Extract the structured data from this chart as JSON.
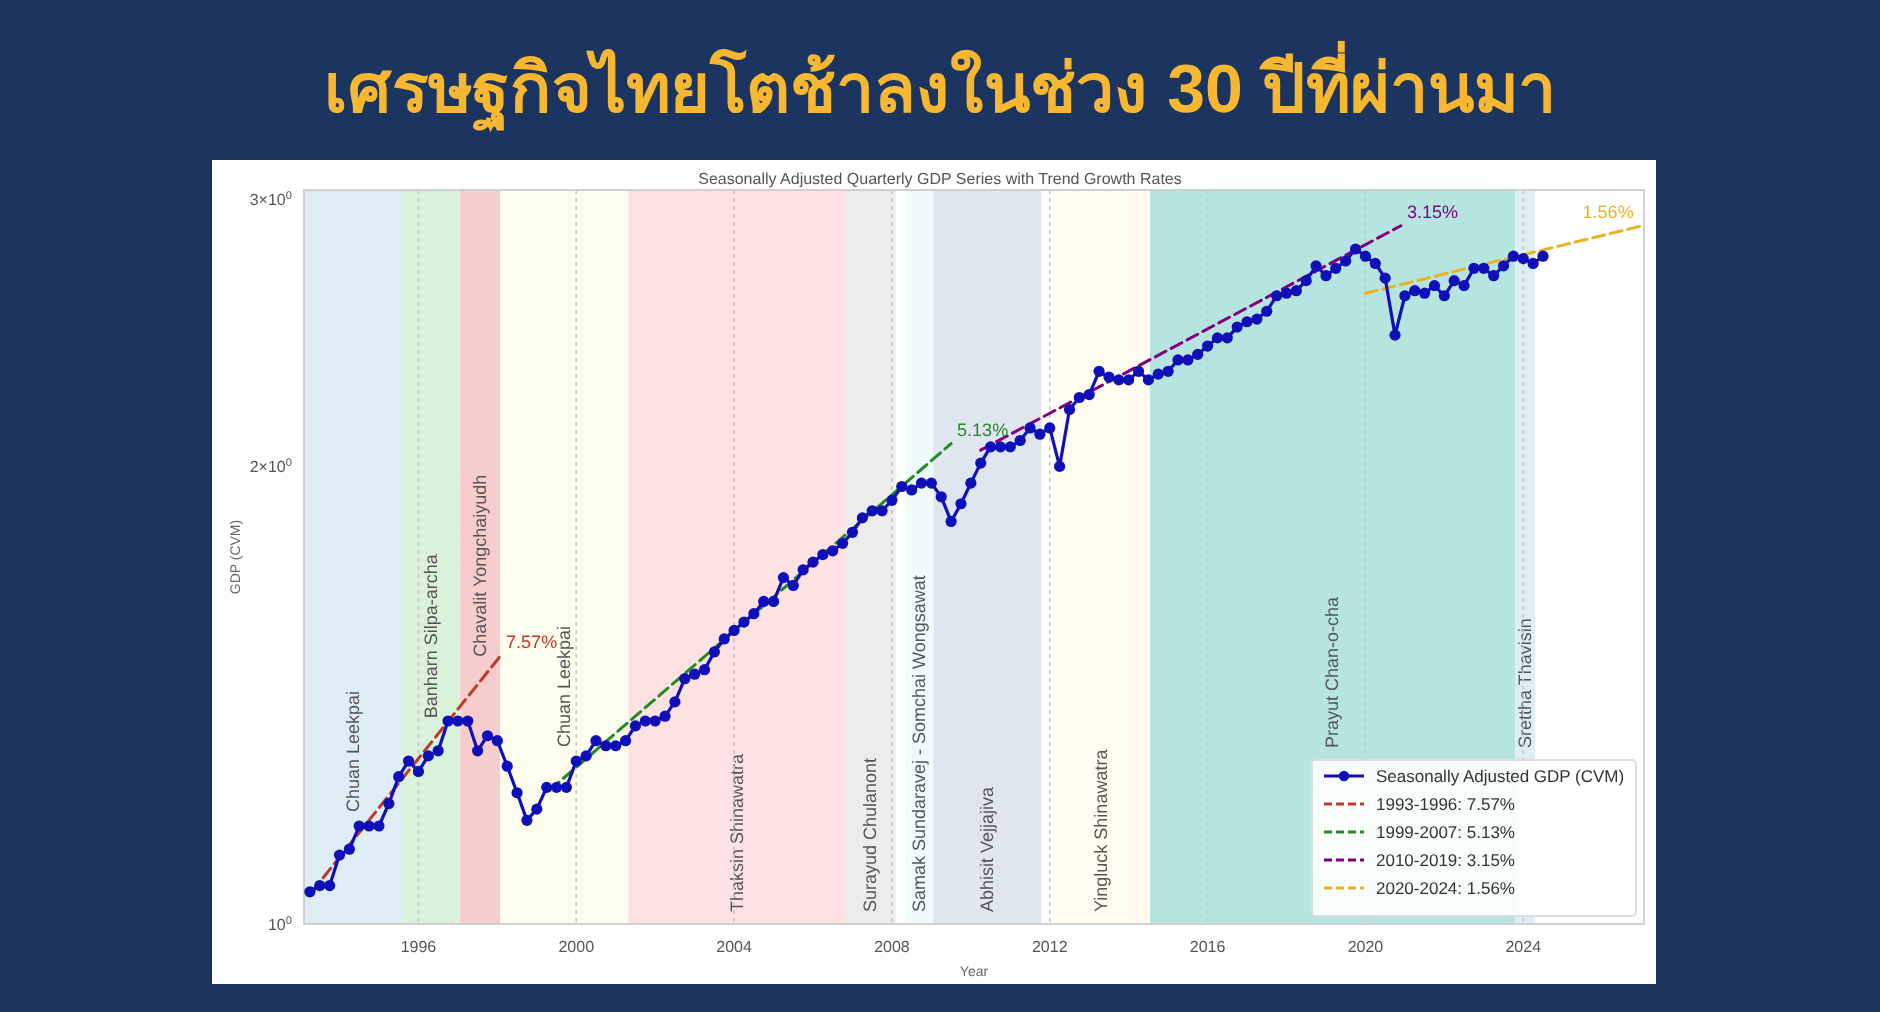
{
  "chart_data": {
    "type": "line",
    "title": "เศรษฐกิจไทยโตช้าลงในช่วง 30 ปีที่ผ่านมา",
    "subtitle": "Seasonally Adjusted Quarterly GDP Series with Trend Growth Rates",
    "xlabel": "Year",
    "ylabel": "GDP (CVM)",
    "log": "y",
    "grid": "x",
    "legend": "bottom right",
    "xlim": [
      1993.1,
      2027.06
    ],
    "xticks": [
      1996,
      2000,
      2004,
      2008,
      2012,
      2016,
      2020,
      2024
    ],
    "ylim": [
      1,
      3.04
    ],
    "yticks": [
      {
        "value": 1,
        "label": "10$^{0}$"
      },
      {
        "value": 2,
        "label": "2×10$^{0}$"
      },
      {
        "value": 3,
        "label": "3×10$^{0}$"
      }
    ],
    "series": [
      {
        "name": "Seasonally Adjusted GDP (CVM)",
        "color": "#1010b8",
        "marker": "circle",
        "line_style": "solid",
        "x": [
          1993.25,
          1993.5,
          1993.75,
          1994,
          1994.25,
          1994.5,
          1994.75,
          1995,
          1995.25,
          1995.5,
          1995.75,
          1996,
          1996.25,
          1996.5,
          1996.75,
          1997,
          1997.25,
          1997.5,
          1997.75,
          1998,
          1998.25,
          1998.5,
          1998.75,
          1999,
          1999.25,
          1999.5,
          1999.75,
          2000,
          2000.25,
          2000.5,
          2000.75,
          2001,
          2001.25,
          2001.5,
          2001.75,
          2002,
          2002.25,
          2002.5,
          2002.75,
          2003,
          2003.25,
          2003.5,
          2003.75,
          2004,
          2004.25,
          2004.5,
          2004.75,
          2005,
          2005.25,
          2005.5,
          2005.75,
          2006,
          2006.25,
          2006.5,
          2006.75,
          2007,
          2007.25,
          2007.5,
          2007.75,
          2008,
          2008.25,
          2008.5,
          2008.75,
          2009,
          2009.25,
          2009.5,
          2009.75,
          2010,
          2010.25,
          2010.5,
          2010.75,
          2011,
          2011.25,
          2011.5,
          2011.75,
          2012,
          2012.25,
          2012.5,
          2012.75,
          2013,
          2013.25,
          2013.5,
          2013.75,
          2014,
          2014.25,
          2014.5,
          2014.75,
          2015,
          2015.25,
          2015.5,
          2015.75,
          2016,
          2016.25,
          2016.5,
          2016.75,
          2017,
          2017.25,
          2017.5,
          2017.75,
          2018,
          2018.25,
          2018.5,
          2018.75,
          2019,
          2019.25,
          2019.5,
          2019.75,
          2020,
          2020.25,
          2020.5,
          2020.75,
          2021,
          2021.25,
          2021.5,
          2021.75,
          2022,
          2022.25,
          2022.5,
          2022.75,
          2023,
          2023.25,
          2023.5,
          2023.75,
          2024,
          2024.25,
          2024.5
        ],
        "values": [
          1.05,
          1.06,
          1.06,
          1.11,
          1.12,
          1.16,
          1.16,
          1.16,
          1.2,
          1.25,
          1.28,
          1.26,
          1.29,
          1.3,
          1.36,
          1.36,
          1.36,
          1.3,
          1.33,
          1.32,
          1.27,
          1.22,
          1.17,
          1.19,
          1.23,
          1.23,
          1.23,
          1.28,
          1.29,
          1.32,
          1.31,
          1.31,
          1.32,
          1.35,
          1.36,
          1.36,
          1.37,
          1.4,
          1.45,
          1.46,
          1.47,
          1.51,
          1.54,
          1.56,
          1.58,
          1.6,
          1.63,
          1.63,
          1.69,
          1.67,
          1.71,
          1.73,
          1.75,
          1.76,
          1.78,
          1.81,
          1.85,
          1.87,
          1.87,
          1.9,
          1.94,
          1.93,
          1.95,
          1.95,
          1.91,
          1.84,
          1.89,
          1.95,
          2.01,
          2.06,
          2.06,
          2.06,
          2.08,
          2.12,
          2.1,
          2.12,
          2.0,
          2.18,
          2.22,
          2.23,
          2.31,
          2.29,
          2.28,
          2.28,
          2.31,
          2.28,
          2.3,
          2.31,
          2.35,
          2.35,
          2.37,
          2.4,
          2.43,
          2.43,
          2.47,
          2.49,
          2.5,
          2.53,
          2.59,
          2.6,
          2.61,
          2.65,
          2.71,
          2.67,
          2.7,
          2.73,
          2.78,
          2.75,
          2.72,
          2.66,
          2.44,
          2.59,
          2.61,
          2.6,
          2.63,
          2.59,
          2.65,
          2.63,
          2.7,
          2.7,
          2.67,
          2.71,
          2.75,
          2.74,
          2.72,
          2.75
        ]
      },
      {
        "name": "1993-1996: 7.57%",
        "color": "#c0392b",
        "marker": "none",
        "line_style": "dashed",
        "x": [
          1993.3,
          1998.07
        ],
        "values": [
          1.05,
          1.5
        ]
      },
      {
        "name": "1999-2007: 5.13%",
        "color": "#228b22",
        "marker": "none",
        "line_style": "dashed",
        "x": [
          1999.33,
          2009.5
        ],
        "values": [
          1.225,
          2.07
        ]
      },
      {
        "name": "2010-2019: 3.15%",
        "color": "#800080",
        "marker": "none",
        "line_style": "dashed",
        "x": [
          2010.25,
          2020.9
        ],
        "values": [
          2.05,
          2.88
        ]
      },
      {
        "name": "2020-2024: 1.56%",
        "color": "#e6b422",
        "marker": "none",
        "line_style": "dashed",
        "x": [
          2020.0,
          2026.95
        ],
        "values": [
          2.6,
          2.877
        ]
      }
    ],
    "bands": [
      {
        "axis": "x",
        "from": 1993.1,
        "to": 1995.58,
        "label": "Chuan Leekpai",
        "color": "#deedf6"
      },
      {
        "axis": "x",
        "from": 1995.58,
        "to": 1997.06,
        "label": "Banharn Silpa-archa",
        "color": "#d9f2d9"
      },
      {
        "axis": "x",
        "from": 1997.06,
        "to": 1998.07,
        "label": "Chavalit Yongchaiyudh",
        "color": "#f7cccc"
      },
      {
        "axis": "x",
        "from": 1998.07,
        "to": 2001.32,
        "label": "Chuan Leekpai",
        "color": "#fdfdee"
      },
      {
        "axis": "x",
        "from": 2001.32,
        "to": 2006.82,
        "label": "Thaksin Shinawatra",
        "color": "#fde2e4"
      },
      {
        "axis": "x",
        "from": 2006.82,
        "to": 2008.09,
        "label": "Surayud Chulanont",
        "color": "#ececec"
      },
      {
        "axis": "x",
        "from": 2008.34,
        "to": 2009.05,
        "label": "Samak Sundaravej - Somchai Wongsawat",
        "color": "#effafc"
      },
      {
        "axis": "x",
        "from": 2009.05,
        "to": 2011.79,
        "label": "Abhisit Vejjajiva",
        "color": "#dfe6f0"
      },
      {
        "axis": "x",
        "from": 2012.08,
        "to": 2014.54,
        "label": "Yingluck Shinawatra",
        "color": "#fdfcee"
      },
      {
        "axis": "x",
        "from": 2014.54,
        "to": 2023.79,
        "label": "Prayut Chan-o-cha",
        "color": "#b6e5e1"
      },
      {
        "axis": "x",
        "from": 2023.79,
        "to": 2024.3,
        "label": "Srettha Thavisin",
        "color": "#ddeef5"
      }
    ],
    "annotations": [
      {
        "text": "7.57%",
        "x": 1998.07,
        "y": 1.5
      },
      {
        "text": "5.13%",
        "x": 2009.5,
        "y": 2.07
      },
      {
        "text": "3.15%",
        "x": 2020.9,
        "y": 2.88
      },
      {
        "text": "1.56%",
        "x": 2026.95,
        "y": 2.877
      }
    ]
  }
}
